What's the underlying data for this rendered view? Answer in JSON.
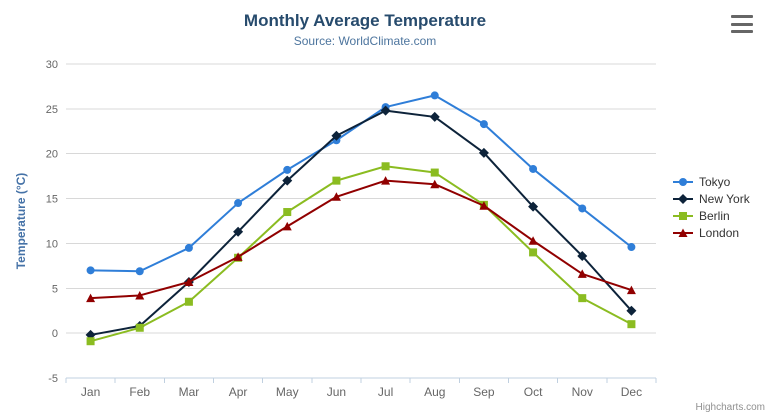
{
  "header": {
    "title": "Monthly Average Temperature",
    "subtitle": "Source: WorldClimate.com"
  },
  "credits": "Highcharts.com",
  "colors": {
    "title": "#274b6d",
    "subtitle": "#4d759e",
    "axis_label": "#666666",
    "y_axis_title": "#4572a7",
    "gridline": "#d8d8d8",
    "axis_line": "#c0d0e0",
    "legend_text": "#333333",
    "credits_text": "#909090",
    "menu_icon": "#666666"
  },
  "chart_data": {
    "type": "line",
    "title": "Monthly Average Temperature",
    "subtitle": "Source: WorldClimate.com",
    "categories": [
      "Jan",
      "Feb",
      "Mar",
      "Apr",
      "May",
      "Jun",
      "Jul",
      "Aug",
      "Sep",
      "Oct",
      "Nov",
      "Dec"
    ],
    "series": [
      {
        "name": "Tokyo",
        "color": "#2f7ed8",
        "marker": "circle",
        "values": [
          7.0,
          6.9,
          9.5,
          14.5,
          18.2,
          21.5,
          25.2,
          26.5,
          23.3,
          18.3,
          13.9,
          9.6
        ]
      },
      {
        "name": "New York",
        "color": "#0d233a",
        "marker": "diamond",
        "values": [
          -0.2,
          0.8,
          5.7,
          11.3,
          17.0,
          22.0,
          24.8,
          24.1,
          20.1,
          14.1,
          8.6,
          2.5
        ]
      },
      {
        "name": "Berlin",
        "color": "#8bbc21",
        "marker": "square",
        "values": [
          -0.9,
          0.6,
          3.5,
          8.4,
          13.5,
          17.0,
          18.6,
          17.9,
          14.3,
          9.0,
          3.9,
          1.0
        ]
      },
      {
        "name": "London",
        "color": "#910000",
        "marker": "triangle",
        "values": [
          3.9,
          4.2,
          5.7,
          8.5,
          11.9,
          15.2,
          17.0,
          16.6,
          14.2,
          10.3,
          6.6,
          4.8
        ]
      }
    ],
    "xlabel": "",
    "ylabel": "Temperature (°C)",
    "yticks": [
      -5,
      0,
      5,
      10,
      15,
      20,
      25,
      30
    ],
    "ylim": [
      -5,
      30
    ],
    "grid": true,
    "legend_position": "right"
  }
}
